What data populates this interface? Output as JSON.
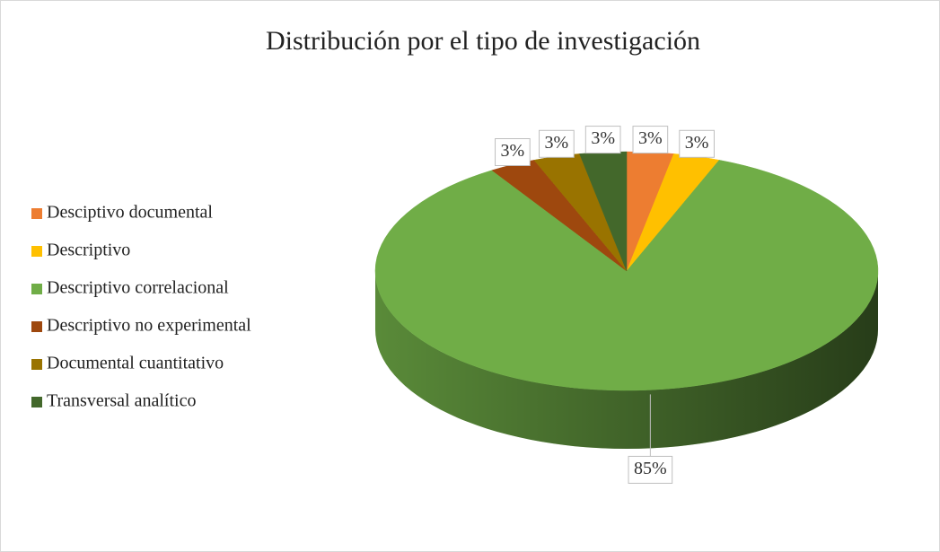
{
  "chart_data": {
    "type": "pie3d",
    "title": "Distribución por el tipo de investigación",
    "categories": [
      "Desciptivo documental",
      "Descriptivo",
      "Descriptivo correlacional",
      "Descriptivo no experimental",
      "Documental cuantitativo",
      "Transversal analítico"
    ],
    "values": [
      3,
      3,
      85,
      3,
      3,
      3
    ],
    "value_labels": [
      "3%",
      "3%",
      "85%",
      "3%",
      "3%",
      "3%"
    ],
    "colors": [
      "#ED7D31",
      "#FFC000",
      "#70AD47",
      "#9E480E",
      "#997300",
      "#43682B"
    ],
    "legend": "left"
  }
}
